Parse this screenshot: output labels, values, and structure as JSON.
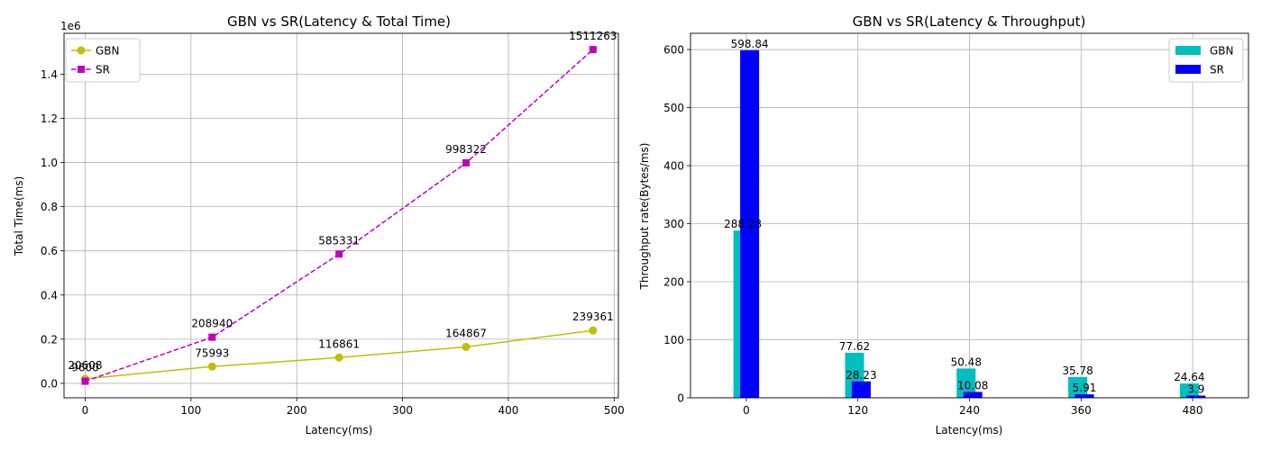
{
  "chart_data": [
    {
      "type": "line",
      "title": "GBN vs SR(Latency & Total Time)",
      "xlabel": "Latency(ms)",
      "ylabel": "Total Time(ms)",
      "offset_label": "1e6",
      "x": [
        0,
        120,
        240,
        360,
        480
      ],
      "xlim": [
        -20,
        504
      ],
      "ylim": [
        -0.0655,
        1.585
      ],
      "xticks": [
        0,
        100,
        200,
        300,
        400,
        500
      ],
      "xtick_labels": [
        "0",
        "100",
        "200",
        "300",
        "400",
        "500"
      ],
      "yticks": [
        0.0,
        0.2,
        0.4,
        0.6,
        0.8,
        1.0,
        1.2,
        1.4
      ],
      "ytick_labels": [
        "0.0",
        "0.2",
        "0.4",
        "0.6",
        "0.8",
        "1.0",
        "1.2",
        "1.4"
      ],
      "grid": true,
      "legend": "upper-left",
      "series": [
        {
          "name": "GBN",
          "values": [
            0.020608,
            0.075993,
            0.116861,
            0.164867,
            0.239361
          ],
          "labels": [
            "20608",
            "75993",
            "116861",
            "164867",
            "239361"
          ],
          "color": "#bfbf00",
          "marker": "circle",
          "dash": "solid"
        },
        {
          "name": "SR",
          "values": [
            0.0096,
            0.20894,
            0.585331,
            0.998322,
            1.511263
          ],
          "labels": [
            "9600",
            "208940",
            "585331",
            "998322",
            "1511263"
          ],
          "color": "#bf00bf",
          "marker": "square",
          "dash": "dashed"
        }
      ]
    },
    {
      "type": "bar",
      "title": "GBN vs SR(Latency & Throughput)",
      "xlabel": "Latency(ms)",
      "ylabel": "Throughput rate(Bytes/ms)",
      "categories": [
        "0",
        "120",
        "240",
        "360",
        "480"
      ],
      "ylim": [
        0,
        628
      ],
      "yticks": [
        0,
        100,
        200,
        300,
        400,
        500,
        600
      ],
      "ytick_labels": [
        "0",
        "100",
        "200",
        "300",
        "400",
        "500",
        "600"
      ],
      "grid": true,
      "legend": "upper-right",
      "series": [
        {
          "name": "GBN",
          "values": [
            288.23,
            77.62,
            50.48,
            35.78,
            24.64
          ],
          "labels": [
            "288.23",
            "77.62",
            "50.48",
            "35.78",
            "24.64"
          ],
          "color": "#00bfbf"
        },
        {
          "name": "SR",
          "values": [
            598.84,
            28.23,
            10.08,
            5.91,
            3.9
          ],
          "labels": [
            "598.84",
            "28.23",
            "10.08",
            "5.91",
            "3.9"
          ],
          "color": "#0000ff"
        }
      ]
    }
  ]
}
